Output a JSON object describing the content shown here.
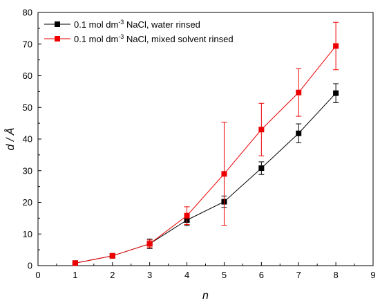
{
  "chart_data": {
    "type": "line",
    "title": "",
    "xlabel": "n",
    "ylabel": "d / Å",
    "xlim": [
      0,
      9
    ],
    "ylim": [
      0,
      80
    ],
    "xticks": [
      0,
      1,
      2,
      3,
      4,
      5,
      6,
      7,
      8,
      9
    ],
    "yticks": [
      0,
      10,
      20,
      30,
      40,
      50,
      60,
      70,
      80
    ],
    "grid": false,
    "legend_position": "top-left",
    "x": [
      1,
      2,
      3,
      4,
      5,
      6,
      7,
      8
    ],
    "series": [
      {
        "name_parts": {
          "prefix": "0.1 mol dm",
          "superscript": "-3",
          "suffix": " NaCl, water rinsed"
        },
        "color": "#000000",
        "marker": "square",
        "values": [
          0.8,
          3.1,
          6.9,
          14.4,
          20.2,
          30.8,
          41.8,
          54.5
        ],
        "errors": [
          0.3,
          0.4,
          1.5,
          1.8,
          1.8,
          2.0,
          3.0,
          3.0
        ]
      },
      {
        "name_parts": {
          "prefix": "0.1 mol dm",
          "superscript": "-3",
          "suffix": " NaCl, mixed solvent rinsed"
        },
        "color": "#ee0000",
        "marker": "square",
        "values": [
          0.8,
          3.1,
          6.9,
          15.8,
          29.0,
          43.0,
          54.7,
          69.4
        ],
        "errors": [
          0.3,
          0.4,
          1.2,
          2.8,
          16.3,
          8.3,
          7.5,
          7.5
        ]
      }
    ]
  }
}
